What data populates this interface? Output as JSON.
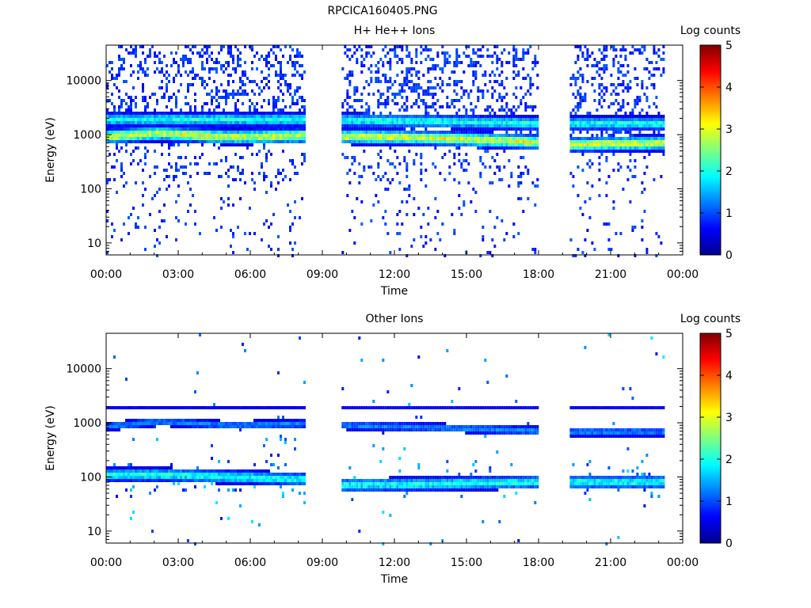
{
  "figure": {
    "title": "RPCICA160405.PNG"
  },
  "colorbar": {
    "label": "Log counts",
    "ticks": [
      "0",
      "1",
      "2",
      "3",
      "4",
      "5"
    ],
    "range": [
      0,
      5
    ]
  },
  "chart_data": [
    {
      "type": "heatmap",
      "title": "H+ He++ Ions",
      "xlabel": "Time",
      "ylabel": "Energy (eV)",
      "x_ticks": [
        "00:00",
        "03:00",
        "06:00",
        "09:00",
        "12:00",
        "15:00",
        "18:00",
        "21:00",
        "00:00"
      ],
      "xlim_hours": [
        0,
        24
      ],
      "y_ticks": [
        "10",
        "100",
        "1000",
        "10000"
      ],
      "yscale": "log",
      "ylim": [
        6,
        45000
      ],
      "data_intervals_hours": [
        [
          0,
          8.3
        ],
        [
          9.8,
          18.0
        ],
        [
          19.3,
          23.2
        ]
      ],
      "bands": [
        {
          "name": "",
          "energy_eV": [
            [
              0,
              920
            ],
            [
              2.2,
              1050
            ],
            [
              5,
              900
            ],
            [
              8.3,
              950
            ],
            [
              9.8,
              920
            ],
            [
              12,
              900
            ],
            [
              15,
              820
            ],
            [
              18,
              720
            ],
            [
              19.3,
              650
            ],
            [
              23.2,
              700
            ]
          ],
          "peak_log_counts": 3.0
        },
        {
          "name": "",
          "energy_eV": [
            [
              0,
              1900
            ],
            [
              8.3,
              1900
            ],
            [
              9.8,
              1850
            ],
            [
              12,
              1800
            ],
            [
              15,
              1700
            ],
            [
              18,
              1600
            ],
            [
              19.3,
              1600
            ],
            [
              23.2,
              1600
            ]
          ],
          "peak_log_counts": 2.0
        }
      ],
      "colorbar_label": "Log counts"
    },
    {
      "type": "heatmap",
      "title": "Other Ions",
      "xlabel": "Time",
      "ylabel": "Energy (eV)",
      "x_ticks": [
        "00:00",
        "03:00",
        "06:00",
        "09:00",
        "12:00",
        "15:00",
        "18:00",
        "21:00",
        "00:00"
      ],
      "xlim_hours": [
        0,
        24
      ],
      "y_ticks": [
        "10",
        "100",
        "1000",
        "10000"
      ],
      "yscale": "log",
      "ylim": [
        6,
        45000
      ],
      "data_intervals_hours": [
        [
          0,
          8.3
        ],
        [
          9.8,
          18.0
        ],
        [
          19.3,
          23.2
        ]
      ],
      "bands": [
        {
          "name": "",
          "energy_eV": [
            [
              0,
              850
            ],
            [
              2.2,
              1050
            ],
            [
              5,
              900
            ],
            [
              8.3,
              950
            ],
            [
              9.8,
              900
            ],
            [
              12,
              850
            ],
            [
              15,
              780
            ],
            [
              18,
              700
            ],
            [
              19.3,
              680
            ],
            [
              23.2,
              680
            ]
          ],
          "peak_log_counts": 1.3
        },
        {
          "name": "",
          "energy_eV": [
            [
              0,
              1900
            ],
            [
              8.3,
              1900
            ]
          ],
          "peak_log_counts": 0.6
        },
        {
          "name": "",
          "energy_eV": [
            [
              0,
              110
            ],
            [
              2.2,
              110
            ],
            [
              8.3,
              90
            ],
            [
              9.8,
              70
            ],
            [
              18,
              80
            ],
            [
              19.3,
              80
            ],
            [
              23.2,
              80
            ]
          ],
          "peak_log_counts": 2.0
        }
      ],
      "colorbar_label": "Log counts"
    }
  ]
}
